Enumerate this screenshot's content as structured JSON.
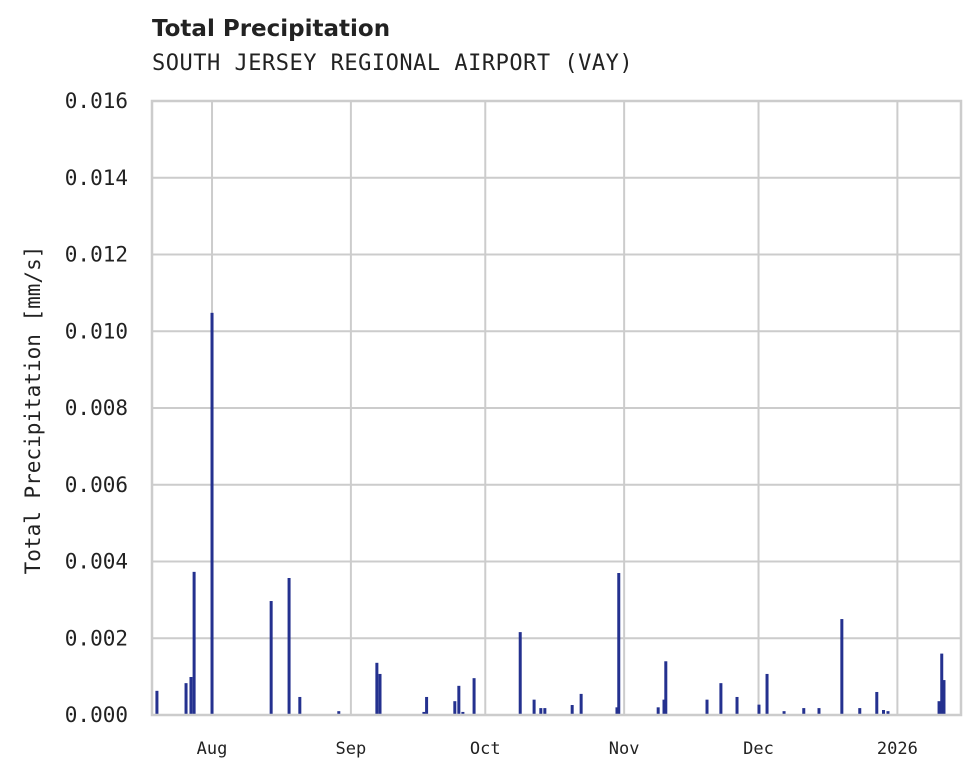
{
  "header": {
    "title": "Total Precipitation",
    "subtitle": "SOUTH JERSEY REGIONAL AIRPORT (VAY)"
  },
  "colors": {
    "series": "#24318f",
    "grid": "#cccccc",
    "text": "#222222"
  },
  "chart_data": {
    "type": "bar",
    "title": "Total Precipitation",
    "subtitle": "SOUTH JERSEY REGIONAL AIRPORT (VAY)",
    "xlabel": "",
    "ylabel": "Total Precipitation [mm/s]",
    "ylim": [
      0,
      0.016
    ],
    "yticks": [
      "0.000",
      "0.002",
      "0.004",
      "0.006",
      "0.008",
      "0.010",
      "0.012",
      "0.014",
      "0.016"
    ],
    "xticks": [
      "Aug",
      "Sep",
      "Oct",
      "Nov",
      "Dec",
      "2026"
    ],
    "xtick_day_offsets": [
      0,
      31,
      61,
      92,
      122,
      153
    ],
    "xlim_day_offsets": [
      -13.4,
      167.2
    ],
    "x_unit": "days since Aug 1 2025",
    "grid": true,
    "legend": null,
    "series": [
      {
        "name": "Total Precipitation",
        "points": [
          [
            -12.3,
            0.00063
          ],
          [
            -5.8,
            0.00083
          ],
          [
            -4.7,
            0.00099
          ],
          [
            -4.0,
            0.00373
          ],
          [
            0.0,
            0.01048
          ],
          [
            13.2,
            0.00297
          ],
          [
            17.2,
            0.00357
          ],
          [
            19.6,
            0.00047
          ],
          [
            28.3,
            0.0001
          ],
          [
            36.8,
            0.00136
          ],
          [
            37.5,
            0.00107
          ],
          [
            47.3,
            8e-05
          ],
          [
            47.9,
            0.00047
          ],
          [
            54.2,
            0.00036
          ],
          [
            55.1,
            0.00076
          ],
          [
            56.0,
            8e-05
          ],
          [
            58.5,
            0.00096
          ],
          [
            68.8,
            0.00216
          ],
          [
            71.9,
            0.0004
          ],
          [
            73.4,
            0.00018
          ],
          [
            74.3,
            0.00018
          ],
          [
            80.4,
            0.00026
          ],
          [
            82.4,
            0.00055
          ],
          [
            90.4,
            0.0002
          ],
          [
            90.8,
            0.0037
          ],
          [
            99.6,
            0.0002
          ],
          [
            100.9,
            0.0004
          ],
          [
            101.3,
            0.0014
          ],
          [
            110.5,
            0.0004
          ],
          [
            113.6,
            0.00083
          ],
          [
            117.2,
            0.00047
          ],
          [
            122.1,
            0.00027
          ],
          [
            123.9,
            0.00107
          ],
          [
            127.7,
            0.0001
          ],
          [
            132.1,
            0.00018
          ],
          [
            135.5,
            0.00018
          ],
          [
            140.6,
            0.0025
          ],
          [
            144.6,
            0.00018
          ],
          [
            148.4,
            0.0006
          ],
          [
            149.9,
            0.00013
          ],
          [
            150.9,
            0.0001
          ],
          [
            162.3,
            0.00036
          ],
          [
            162.9,
            0.0016
          ],
          [
            163.4,
            0.00091
          ]
        ]
      }
    ]
  }
}
